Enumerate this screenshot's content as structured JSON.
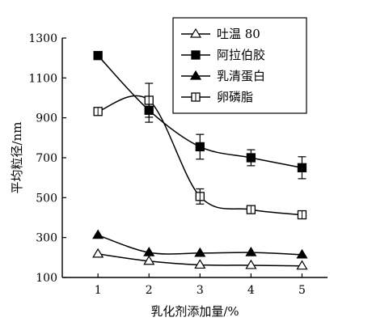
{
  "chart_data": {
    "type": "line",
    "xlabel": "乳化剂添加量/%",
    "ylabel": "平均粒径/nm",
    "x": [
      1,
      2,
      3,
      4,
      5
    ],
    "xlim": [
      0.3,
      5.5
    ],
    "ylim": [
      100,
      1300
    ],
    "x_ticks": [
      "1",
      "2",
      "3",
      "4",
      "5"
    ],
    "y_ticks": [
      "100",
      "300",
      "500",
      "700",
      "900",
      "1100",
      "1300"
    ],
    "legend_position": "top-right",
    "series": [
      {
        "name": "吐温 80",
        "marker": "open-triangle",
        "values": [
          218,
          182,
          163,
          161,
          158
        ],
        "errors": [
          0,
          0,
          0,
          0,
          0
        ]
      },
      {
        "name": "阿拉伯胶",
        "marker": "filled-square",
        "values": [
          1212,
          938,
          755,
          700,
          650
        ],
        "errors": [
          0,
          60,
          62,
          40,
          55
        ]
      },
      {
        "name": "乳清蛋白",
        "marker": "filled-triangle",
        "values": [
          312,
          225,
          222,
          225,
          214
        ],
        "errors": [
          0,
          0,
          0,
          0,
          0
        ]
      },
      {
        "name": "卵磷脂",
        "marker": "open-square",
        "values": [
          932,
          988,
          506,
          440,
          414
        ],
        "errors": [
          0,
          85,
          38,
          0,
          0
        ]
      }
    ]
  }
}
